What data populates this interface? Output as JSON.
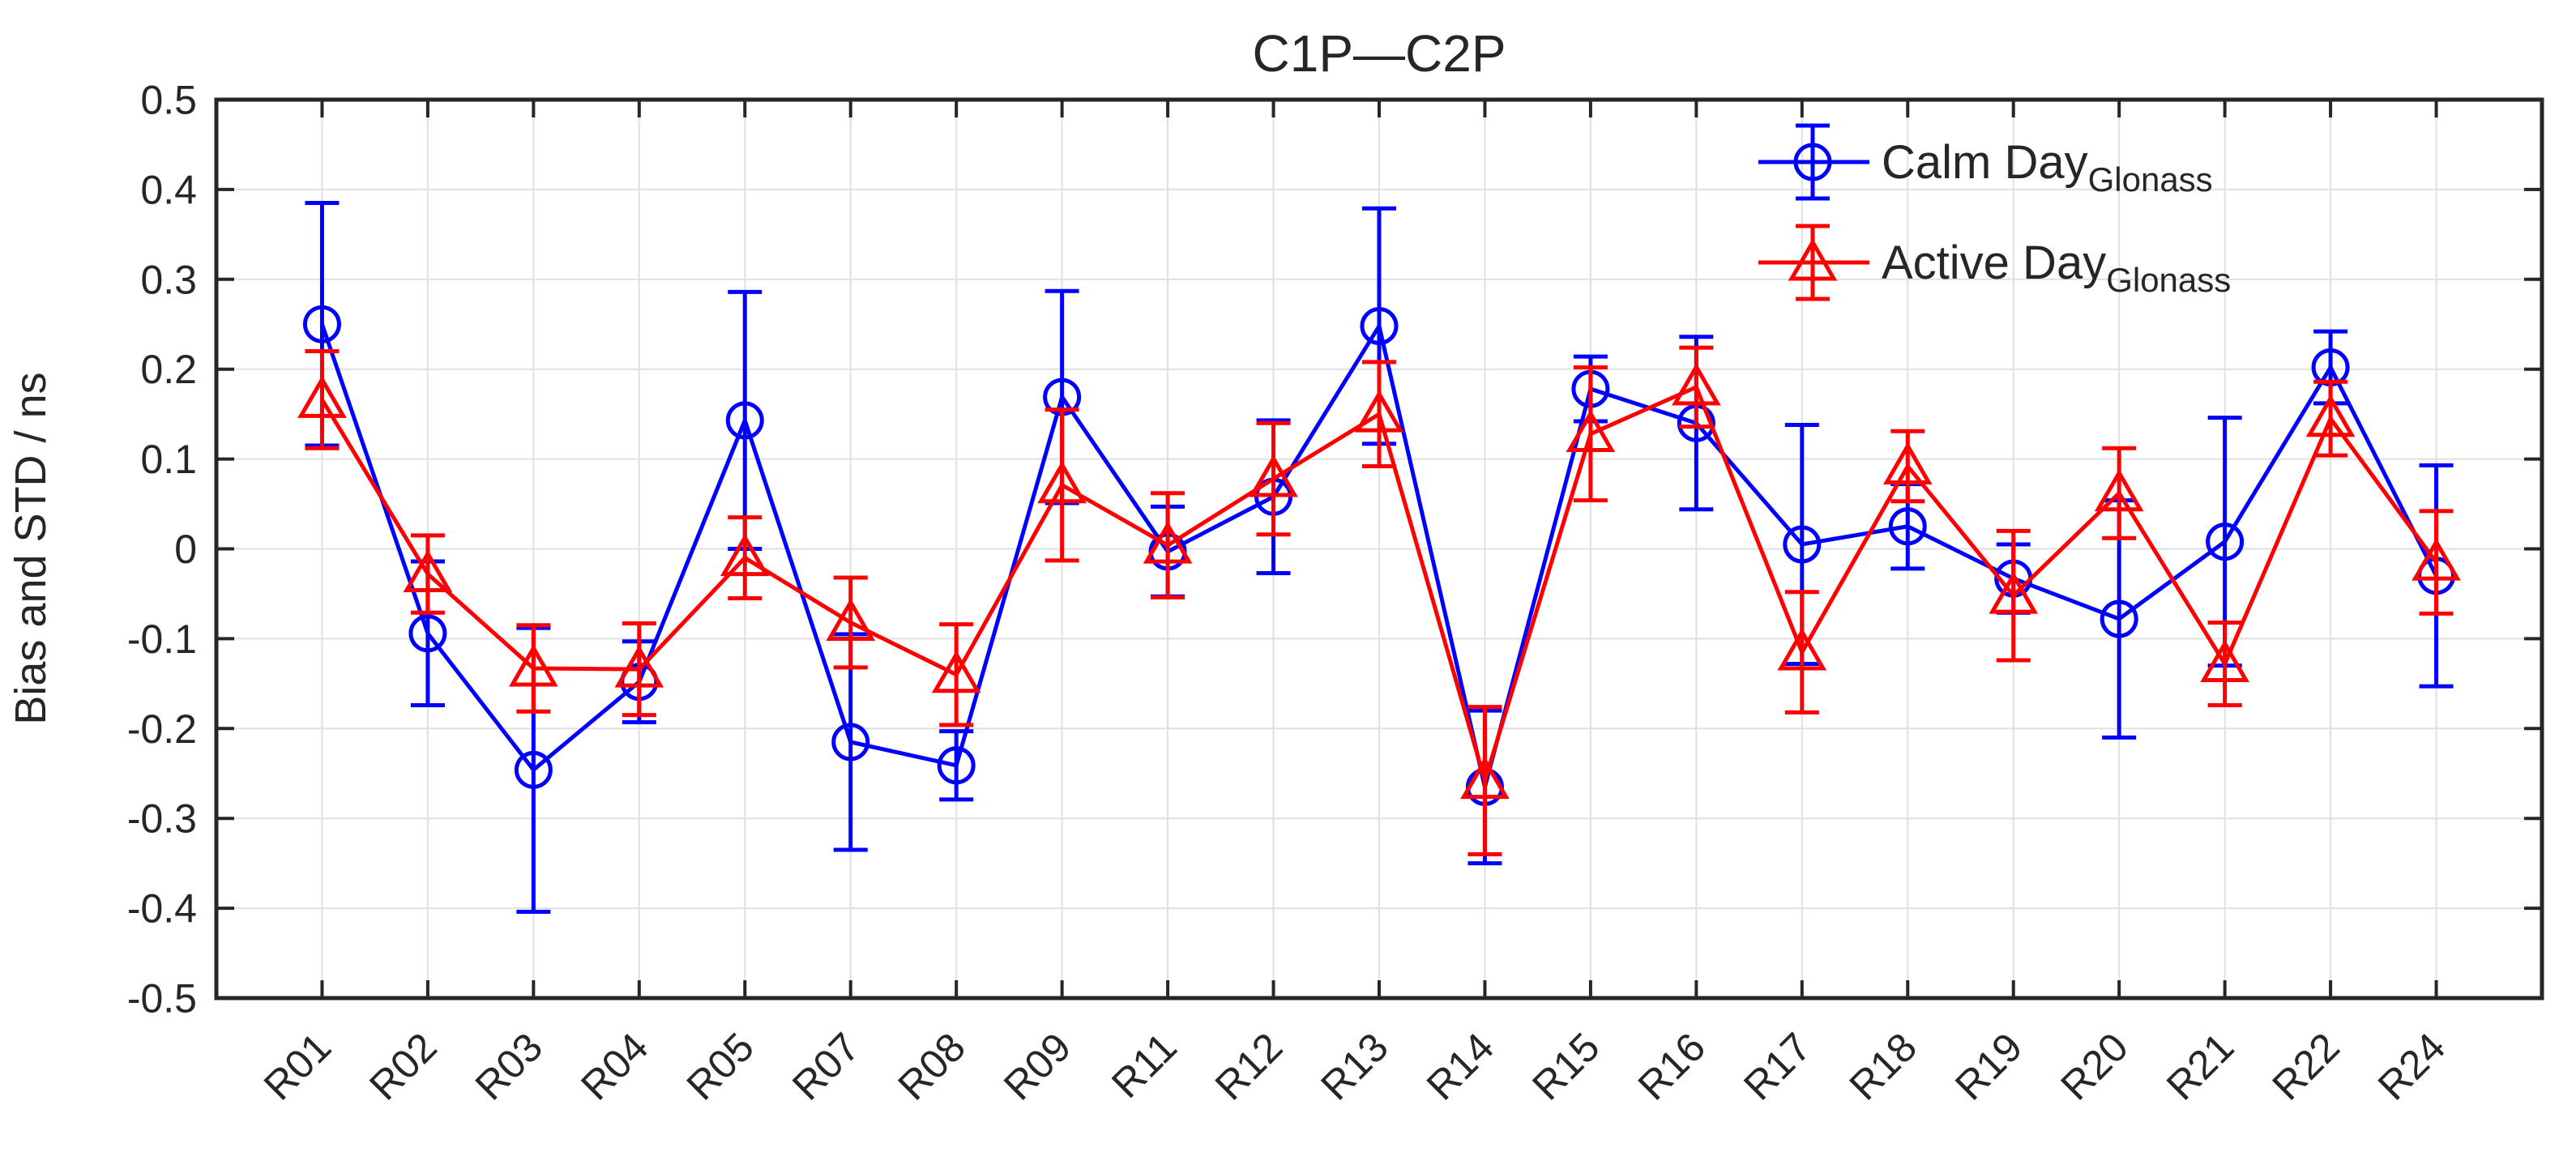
{
  "figure": {
    "background": "#ffffff"
  },
  "chart_data": {
    "type": "line",
    "subtype": "errorbar-line",
    "title": "C1P—C2P",
    "xlabel": "",
    "ylabel": "Bias and STD / ns",
    "ylim": [
      -0.5,
      0.5
    ],
    "ytick_step": 0.1,
    "ytick_labels": [
      "0.5",
      "0.4",
      "0.3",
      "0.2",
      "0.1",
      "0",
      "-0.1",
      "-0.2",
      "-0.3",
      "-0.4",
      "-0.5"
    ],
    "grid": true,
    "legend_position": "top-right",
    "categories": [
      "R01",
      "R02",
      "R03",
      "R04",
      "R05",
      "R07",
      "R08",
      "R09",
      "R11",
      "R12",
      "R13",
      "R14",
      "R15",
      "R16",
      "R17",
      "R18",
      "R19",
      "R20",
      "R21",
      "R22",
      "R24"
    ],
    "series": [
      {
        "name": "Calm Day",
        "subscript": "Glonass",
        "legend_label": "Calm Day Glonass",
        "color": "#0000ff",
        "marker": "circle",
        "values": [
          0.25,
          -0.094,
          -0.246,
          -0.148,
          0.143,
          -0.215,
          -0.241,
          0.169,
          -0.003,
          0.058,
          0.248,
          -0.265,
          0.178,
          0.14,
          0.005,
          0.025,
          -0.033,
          -0.078,
          0.008,
          0.202,
          -0.03
        ],
        "errors": [
          0.135,
          0.08,
          0.158,
          0.045,
          0.143,
          0.12,
          0.038,
          0.118,
          0.05,
          0.085,
          0.131,
          0.085,
          0.036,
          0.096,
          0.133,
          0.047,
          0.038,
          0.132,
          0.138,
          0.04,
          0.123
        ]
      },
      {
        "name": "Active Day",
        "subscript": "Glonass",
        "legend_label": "Active Day Glonass",
        "color": "#ff0000",
        "marker": "triangle",
        "values": [
          0.166,
          -0.028,
          -0.133,
          -0.134,
          -0.01,
          -0.082,
          -0.14,
          0.071,
          0.004,
          0.078,
          0.15,
          -0.258,
          0.128,
          0.18,
          -0.115,
          0.092,
          -0.052,
          0.062,
          -0.128,
          0.145,
          -0.015
        ],
        "errors": [
          0.054,
          0.043,
          0.048,
          0.051,
          0.045,
          0.05,
          0.056,
          0.084,
          0.058,
          0.062,
          0.058,
          0.082,
          0.074,
          0.044,
          0.067,
          0.039,
          0.072,
          0.05,
          0.046,
          0.041,
          0.057
        ]
      }
    ],
    "colors": {
      "axis": "#262626",
      "grid": "#e0e0e0",
      "text": "#262626",
      "calm_day": "#0000ff",
      "active_day": "#ff0000"
    }
  }
}
